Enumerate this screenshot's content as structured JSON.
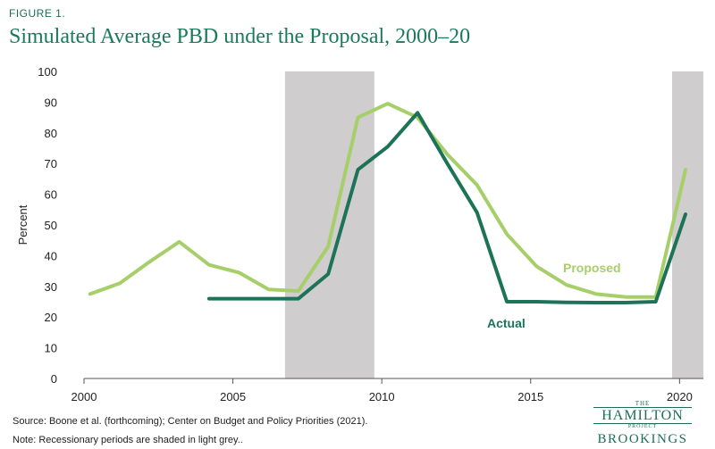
{
  "figure_label": "FIGURE 1.",
  "chart_data": {
    "type": "line",
    "title": "Simulated Average PBD under the Proposal, 2000–20",
    "ylabel": "Percent",
    "xlabel": "",
    "xlim": [
      2000,
      2020.8
    ],
    "ylim": [
      0,
      100
    ],
    "x_ticks": [
      2000,
      2005,
      2010,
      2015,
      2020
    ],
    "y_ticks": [
      0,
      10,
      20,
      30,
      40,
      50,
      60,
      70,
      80,
      90,
      100
    ],
    "recessions": [
      [
        2006.75,
        2009.75
      ],
      [
        2019.75,
        2020.8
      ]
    ],
    "series": [
      {
        "name": "Proposed",
        "color": "#a6cf6a",
        "x": [
          2000.2,
          2001.2,
          2002.2,
          2003.2,
          2004.2,
          2005.2,
          2006.2,
          2007.2,
          2008.2,
          2009.2,
          2010.2,
          2011.2,
          2012.2,
          2013.2,
          2014.2,
          2015.2,
          2016.2,
          2017.2,
          2018.2,
          2019.2,
          2020.2
        ],
        "y": [
          27.5,
          31,
          38,
          44.5,
          37,
          34.5,
          29,
          28.5,
          43,
          85,
          89.5,
          85,
          73,
          63,
          47,
          36.5,
          30.5,
          27.5,
          26.5,
          26.5,
          68
        ]
      },
      {
        "name": "Actual",
        "color": "#1c7358",
        "x": [
          2004.2,
          2005.2,
          2006.2,
          2007.2,
          2008.2,
          2009.2,
          2010.2,
          2011.2,
          2012.2,
          2013.2,
          2014.2,
          2015.2,
          2016.2,
          2017.2,
          2018.2,
          2019.2,
          2020.2
        ],
        "y": [
          26,
          26,
          26,
          26,
          34,
          68,
          75.5,
          86.5,
          70,
          54,
          25,
          25,
          24.8,
          24.7,
          24.7,
          25,
          53.5
        ]
      }
    ]
  },
  "notes": {
    "source": "Source:  Boone et al. (forthcoming); Center on Budget and Policy Priorities (2021).",
    "note": "Note: Recessionary periods are shaded in light grey.."
  },
  "logo": {
    "the": "THE",
    "hamilton": "HAMILTON",
    "project": "PROJECT",
    "brookings": "BROOKINGS"
  }
}
